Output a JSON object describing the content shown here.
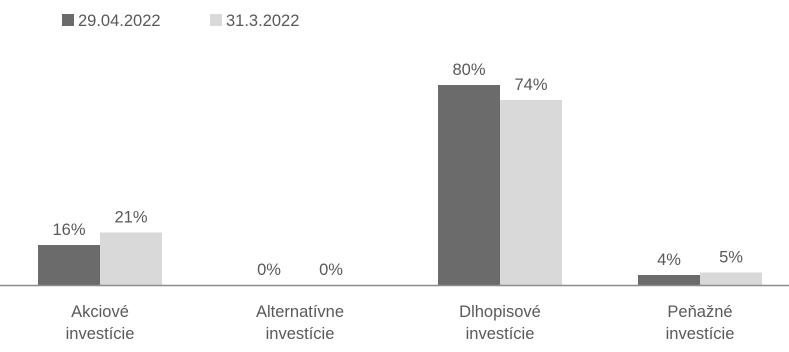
{
  "chart_data": {
    "type": "bar",
    "title": "",
    "xlabel": "",
    "ylabel": "",
    "ylim": [
      0,
      100
    ],
    "grid": false,
    "legend_position": "top-left",
    "categories": [
      [
        "Akciové",
        "investície"
      ],
      [
        "Alternatívne",
        "investície"
      ],
      [
        "Dlhopisové",
        "investície"
      ],
      [
        "Peňažné",
        "investície"
      ]
    ],
    "series": [
      {
        "name": "29.04.2022",
        "color": "#6b6b6b",
        "values": [
          16,
          0,
          80,
          4
        ],
        "labels": [
          "16%",
          "0%",
          "80%",
          "4%"
        ]
      },
      {
        "name": "31.3.2022",
        "color": "#d9d9d9",
        "values": [
          21,
          0,
          74,
          5
        ],
        "labels": [
          "21%",
          "0%",
          "74%",
          "5%"
        ]
      }
    ],
    "axis_color": "#8c8c8c",
    "text_color": "#595959"
  }
}
